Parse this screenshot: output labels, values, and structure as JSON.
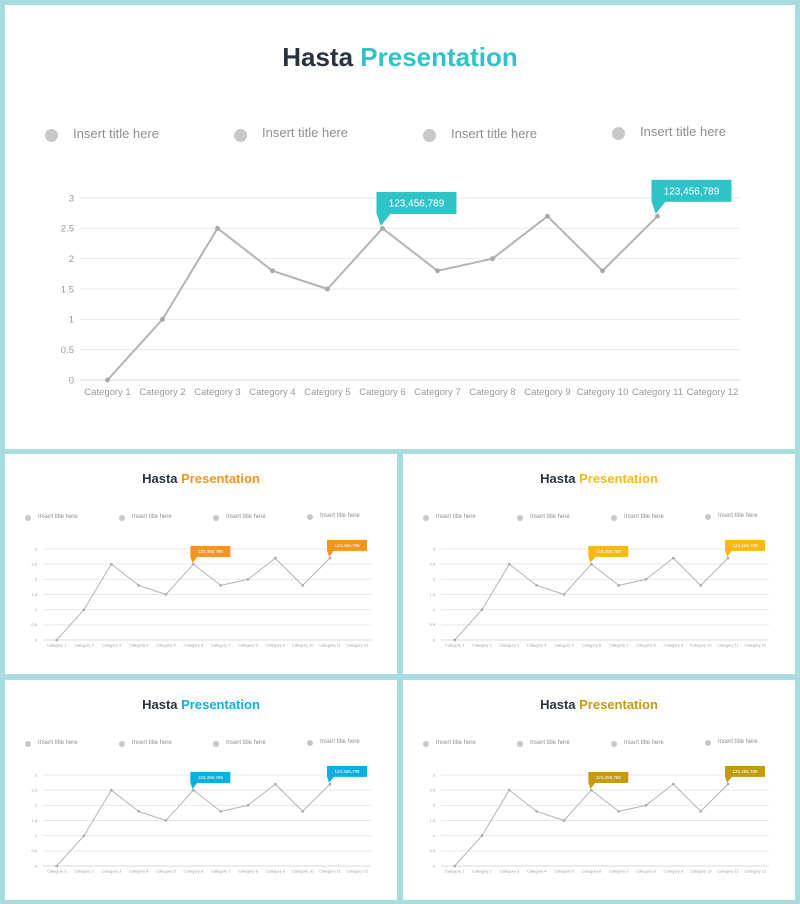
{
  "title_word1": "Hasta",
  "title_word2": "Presentation",
  "legend_labels": [
    "Insert title here",
    "Insert title here",
    "Insert title here",
    "Insert title here"
  ],
  "callout_labels": [
    "123,456,789",
    "123,456,789"
  ],
  "slides": [
    {
      "name": "main",
      "accent": "#2ec4c7"
    },
    {
      "name": "orange",
      "accent": "#f7941d"
    },
    {
      "name": "yellow",
      "accent": "#f9b912"
    },
    {
      "name": "blue",
      "accent": "#0ab0e4"
    },
    {
      "name": "gold",
      "accent": "#c39a12"
    }
  ],
  "chart_data": {
    "type": "line",
    "categories": [
      "Category 1",
      "Category 2",
      "Category 3",
      "Category 4",
      "Category 5",
      "Category 6",
      "Category 7",
      "Category 8",
      "Category 9",
      "Category 10",
      "Category 11",
      "Category 12"
    ],
    "values": [
      0,
      1,
      2.5,
      1.8,
      1.5,
      2.5,
      1.8,
      2.0,
      2.7,
      1.8,
      2.7,
      null
    ],
    "yticks": [
      "0",
      "0.5",
      "1",
      "1.5",
      "2",
      "2.5",
      "3"
    ],
    "ylim": [
      0,
      3
    ],
    "grid": true,
    "line_color": "#b4b4b4",
    "callout_categories": [
      "Category 6",
      "Category 11"
    ]
  }
}
